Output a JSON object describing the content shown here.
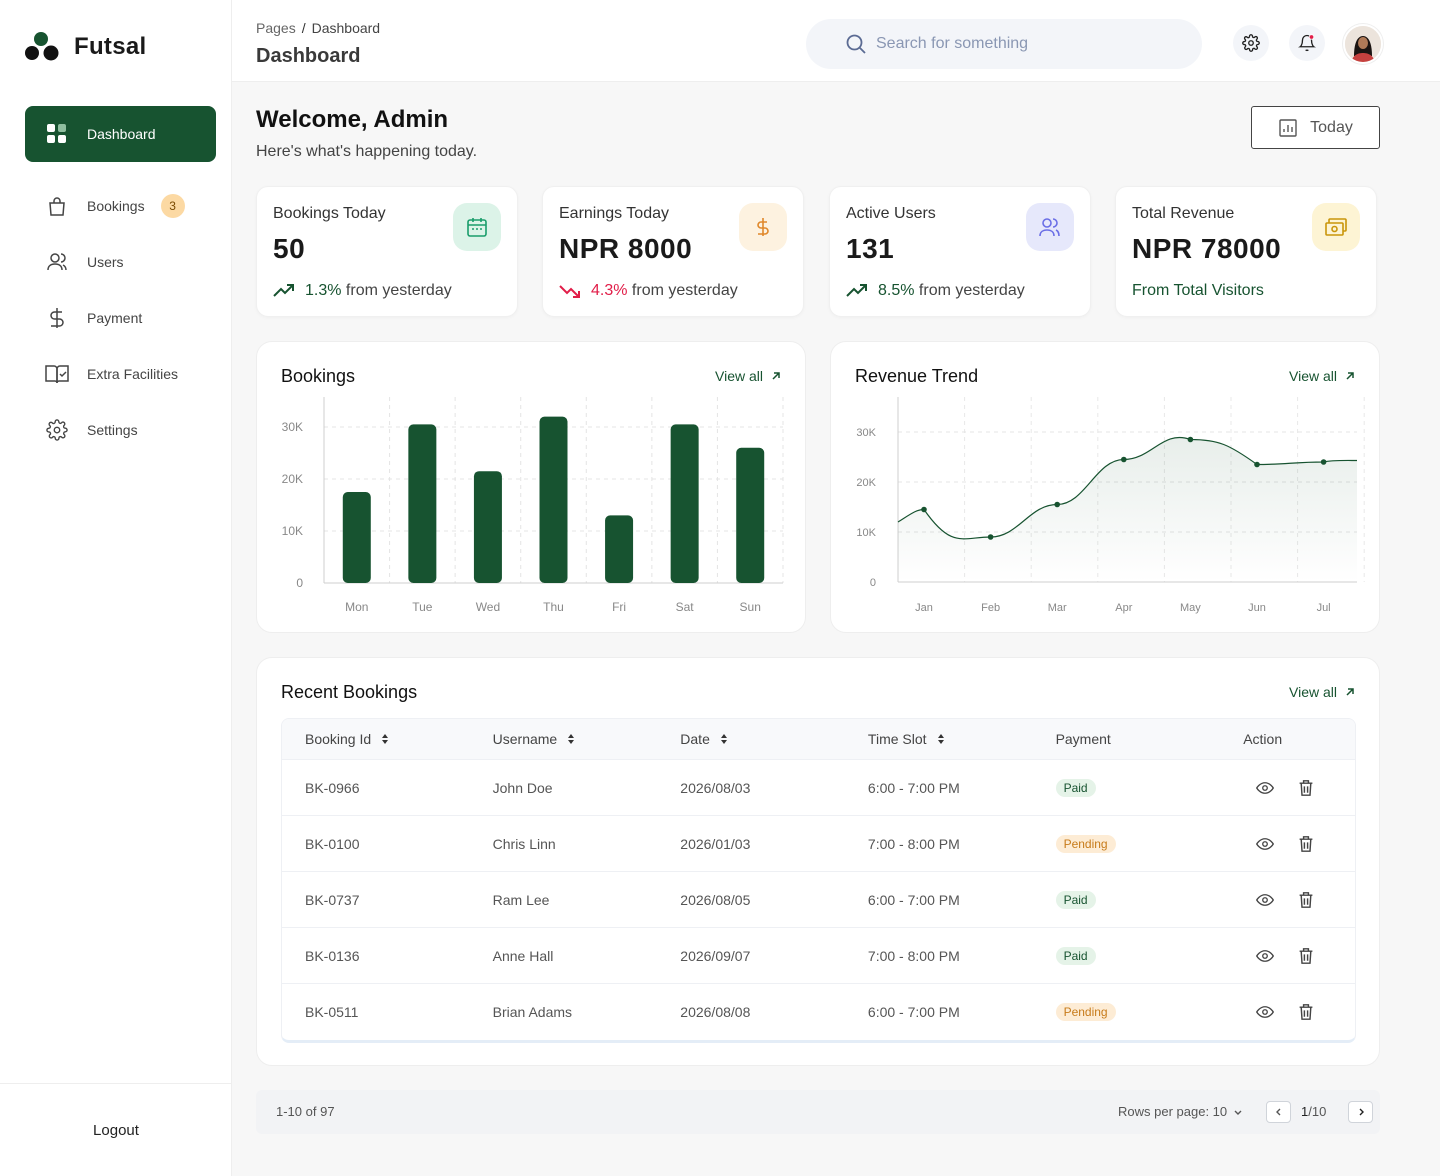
{
  "brand": {
    "name": "Futsal"
  },
  "nav": {
    "dashboard": "Dashboard",
    "bookings": "Bookings",
    "bookings_badge": "3",
    "users": "Users",
    "payment": "Payment",
    "extra": "Extra Facilities",
    "settings": "Settings",
    "logout": "Logout"
  },
  "header": {
    "breadcrumb_root": "Pages",
    "breadcrumb_sep": "/",
    "breadcrumb_current": "Dashboard",
    "title": "Dashboard",
    "search_placeholder": "Search for something"
  },
  "welcome": {
    "title": "Welcome, Admin",
    "subtitle": "Here's what's happening today.",
    "today_label": "Today"
  },
  "stats": [
    {
      "label": "Bookings Today",
      "value": "50",
      "change": "1.3%",
      "suffix": " from yesterday",
      "trend": "up",
      "icon": "calendar-icon",
      "icon_bg": "#dcf3e8",
      "icon_color": "#1a9d6b"
    },
    {
      "label": "Earnings Today",
      "value": "NPR 8000",
      "change": "4.3%",
      "suffix": " from yesterday",
      "trend": "down",
      "icon": "dollar-icon",
      "icon_bg": "#fdf2e0",
      "icon_color": "#e0882a"
    },
    {
      "label": "Active Users",
      "value": "131",
      "change": "8.5%",
      "suffix": " from yesterday",
      "trend": "up",
      "icon": "users-icon",
      "icon_bg": "#e6e8fb",
      "icon_color": "#6a6ee6"
    },
    {
      "label": "Total Revenue",
      "value": "NPR 78000",
      "foot": "From Total Visitors",
      "icon": "money-icon",
      "icon_bg": "#fdf4d4",
      "icon_color": "#c9950a"
    }
  ],
  "bookings_card": {
    "title": "Bookings",
    "view_all": "View all"
  },
  "revenue_card": {
    "title": "Revenue Trend",
    "view_all": "View all"
  },
  "chart_data": [
    {
      "type": "bar",
      "title": "Bookings",
      "categories": [
        "Mon",
        "Tue",
        "Wed",
        "Thu",
        "Fri",
        "Sat",
        "Sun"
      ],
      "values": [
        17500,
        30500,
        21500,
        32000,
        13000,
        30500,
        26000
      ],
      "yticks": [
        "0",
        "10K",
        "20K",
        "30K"
      ],
      "ylim": [
        0,
        30000
      ],
      "grid": true,
      "color": "#175330"
    },
    {
      "type": "line",
      "title": "Revenue Trend",
      "categories": [
        "Jan",
        "Feb",
        "Mar",
        "Apr",
        "May",
        "Jun",
        "Jul"
      ],
      "values": [
        14500,
        9000,
        15500,
        24500,
        28500,
        23500,
        24000
      ],
      "yticks": [
        "0",
        "10K",
        "20K",
        "30K"
      ],
      "ylim": [
        0,
        30000
      ],
      "grid": true,
      "color": "#175330"
    }
  ],
  "recent": {
    "title": "Recent Bookings",
    "view_all": "View all",
    "headers": [
      "Booking Id",
      "Username",
      "Date",
      "Time Slot",
      "Payment",
      "Action"
    ],
    "rows": [
      {
        "id": "BK-0966",
        "user": "John Doe",
        "date": "2026/08/03",
        "slot": "6:00 - 7:00 PM",
        "payment": "Paid"
      },
      {
        "id": "BK-0100",
        "user": "Chris Linn",
        "date": "2026/01/03",
        "slot": "7:00 - 8:00 PM",
        "payment": "Pending"
      },
      {
        "id": "BK-0737",
        "user": "Ram Lee",
        "date": "2026/08/05",
        "slot": "6:00 - 7:00 PM",
        "payment": "Paid"
      },
      {
        "id": "BK-0136",
        "user": "Anne Hall",
        "date": "2026/09/07",
        "slot": "7:00 - 8:00 PM",
        "payment": "Paid"
      },
      {
        "id": "BK-0511",
        "user": "Brian Adams",
        "date": "2026/08/08",
        "slot": "6:00 - 7:00 PM",
        "payment": "Pending"
      }
    ]
  },
  "pager": {
    "info": "1-10 of 97",
    "rows_per_page": "Rows per page: 10",
    "page": "1",
    "total_pages": "/10"
  },
  "colors": {
    "primary": "#175330",
    "up": "#175330",
    "down": "#e11d48"
  }
}
